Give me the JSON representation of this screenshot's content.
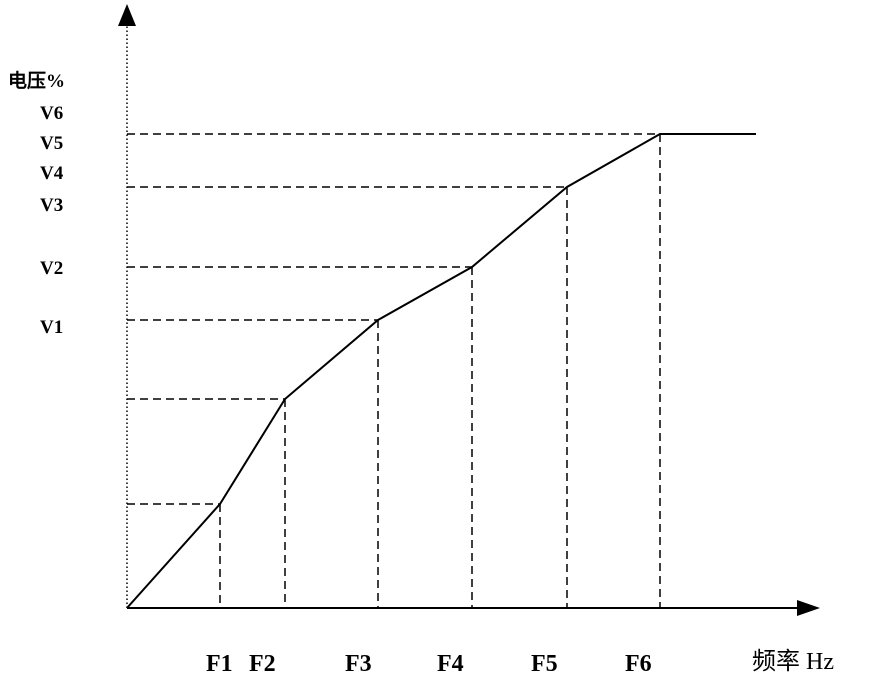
{
  "y_axis_label": "电压%",
  "x_axis_label": "频率 Hz",
  "v_labels": [
    "V6",
    "V5",
    "V4",
    "V3",
    "V2",
    "V1"
  ],
  "f_labels": [
    "F1",
    "F2",
    "F3",
    "F4",
    "F5",
    "F6"
  ],
  "curve": {
    "description_points": [
      "origin",
      "F1",
      "F2",
      "F3",
      "F4",
      "F5",
      "F6",
      "flat"
    ]
  }
}
